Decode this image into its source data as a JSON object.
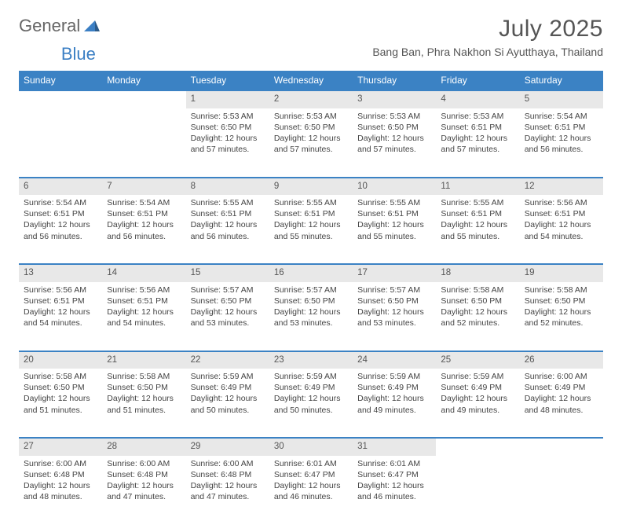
{
  "brand": {
    "part1": "General",
    "part2": "Blue"
  },
  "title": "July 2025",
  "location": "Bang Ban, Phra Nakhon Si Ayutthaya, Thailand",
  "colors": {
    "header_bg": "#3b82c4",
    "daynum_bg": "#e8e8e8",
    "border": "#3b82c4",
    "text": "#444444",
    "title_text": "#555555"
  },
  "layout": {
    "columns": 7,
    "rows": 5,
    "blank_leading_cells": 2
  },
  "weekdays": [
    "Sunday",
    "Monday",
    "Tuesday",
    "Wednesday",
    "Thursday",
    "Friday",
    "Saturday"
  ],
  "days": [
    {
      "n": 1,
      "sr": "5:53 AM",
      "ss": "6:50 PM",
      "dl": "12 hours and 57 minutes."
    },
    {
      "n": 2,
      "sr": "5:53 AM",
      "ss": "6:50 PM",
      "dl": "12 hours and 57 minutes."
    },
    {
      "n": 3,
      "sr": "5:53 AM",
      "ss": "6:50 PM",
      "dl": "12 hours and 57 minutes."
    },
    {
      "n": 4,
      "sr": "5:53 AM",
      "ss": "6:51 PM",
      "dl": "12 hours and 57 minutes."
    },
    {
      "n": 5,
      "sr": "5:54 AM",
      "ss": "6:51 PM",
      "dl": "12 hours and 56 minutes."
    },
    {
      "n": 6,
      "sr": "5:54 AM",
      "ss": "6:51 PM",
      "dl": "12 hours and 56 minutes."
    },
    {
      "n": 7,
      "sr": "5:54 AM",
      "ss": "6:51 PM",
      "dl": "12 hours and 56 minutes."
    },
    {
      "n": 8,
      "sr": "5:55 AM",
      "ss": "6:51 PM",
      "dl": "12 hours and 56 minutes."
    },
    {
      "n": 9,
      "sr": "5:55 AM",
      "ss": "6:51 PM",
      "dl": "12 hours and 55 minutes."
    },
    {
      "n": 10,
      "sr": "5:55 AM",
      "ss": "6:51 PM",
      "dl": "12 hours and 55 minutes."
    },
    {
      "n": 11,
      "sr": "5:55 AM",
      "ss": "6:51 PM",
      "dl": "12 hours and 55 minutes."
    },
    {
      "n": 12,
      "sr": "5:56 AM",
      "ss": "6:51 PM",
      "dl": "12 hours and 54 minutes."
    },
    {
      "n": 13,
      "sr": "5:56 AM",
      "ss": "6:51 PM",
      "dl": "12 hours and 54 minutes."
    },
    {
      "n": 14,
      "sr": "5:56 AM",
      "ss": "6:51 PM",
      "dl": "12 hours and 54 minutes."
    },
    {
      "n": 15,
      "sr": "5:57 AM",
      "ss": "6:50 PM",
      "dl": "12 hours and 53 minutes."
    },
    {
      "n": 16,
      "sr": "5:57 AM",
      "ss": "6:50 PM",
      "dl": "12 hours and 53 minutes."
    },
    {
      "n": 17,
      "sr": "5:57 AM",
      "ss": "6:50 PM",
      "dl": "12 hours and 53 minutes."
    },
    {
      "n": 18,
      "sr": "5:58 AM",
      "ss": "6:50 PM",
      "dl": "12 hours and 52 minutes."
    },
    {
      "n": 19,
      "sr": "5:58 AM",
      "ss": "6:50 PM",
      "dl": "12 hours and 52 minutes."
    },
    {
      "n": 20,
      "sr": "5:58 AM",
      "ss": "6:50 PM",
      "dl": "12 hours and 51 minutes."
    },
    {
      "n": 21,
      "sr": "5:58 AM",
      "ss": "6:50 PM",
      "dl": "12 hours and 51 minutes."
    },
    {
      "n": 22,
      "sr": "5:59 AM",
      "ss": "6:49 PM",
      "dl": "12 hours and 50 minutes."
    },
    {
      "n": 23,
      "sr": "5:59 AM",
      "ss": "6:49 PM",
      "dl": "12 hours and 50 minutes."
    },
    {
      "n": 24,
      "sr": "5:59 AM",
      "ss": "6:49 PM",
      "dl": "12 hours and 49 minutes."
    },
    {
      "n": 25,
      "sr": "5:59 AM",
      "ss": "6:49 PM",
      "dl": "12 hours and 49 minutes."
    },
    {
      "n": 26,
      "sr": "6:00 AM",
      "ss": "6:49 PM",
      "dl": "12 hours and 48 minutes."
    },
    {
      "n": 27,
      "sr": "6:00 AM",
      "ss": "6:48 PM",
      "dl": "12 hours and 48 minutes."
    },
    {
      "n": 28,
      "sr": "6:00 AM",
      "ss": "6:48 PM",
      "dl": "12 hours and 47 minutes."
    },
    {
      "n": 29,
      "sr": "6:00 AM",
      "ss": "6:48 PM",
      "dl": "12 hours and 47 minutes."
    },
    {
      "n": 30,
      "sr": "6:01 AM",
      "ss": "6:47 PM",
      "dl": "12 hours and 46 minutes."
    },
    {
      "n": 31,
      "sr": "6:01 AM",
      "ss": "6:47 PM",
      "dl": "12 hours and 46 minutes."
    }
  ],
  "labels": {
    "sunrise": "Sunrise:",
    "sunset": "Sunset:",
    "daylight": "Daylight:"
  }
}
